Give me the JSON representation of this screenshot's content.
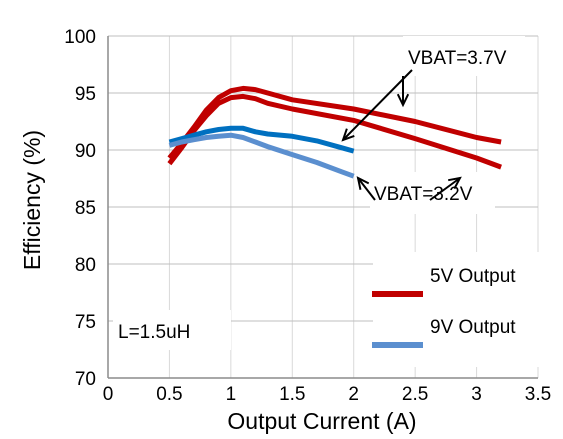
{
  "chart_data": {
    "type": "line",
    "title": "",
    "xlabel": "Output Current (A)",
    "ylabel": "Efficiency (%)",
    "xlim": [
      0,
      3.5
    ],
    "ylim": [
      70,
      100
    ],
    "xticks": [
      0,
      0.5,
      1,
      1.5,
      2,
      2.5,
      3,
      3.5
    ],
    "xtick_labels": [
      "0",
      "0.5",
      "1",
      "1.5",
      "2",
      "2.5",
      "3",
      "3.5"
    ],
    "yticks": [
      70,
      75,
      80,
      85,
      90,
      95,
      100
    ],
    "ytick_labels": [
      "70",
      "75",
      "80",
      "85",
      "90",
      "95",
      "100"
    ],
    "grid": true,
    "legend": {
      "placement": "lower-right",
      "entries": [
        {
          "label": "5V Output",
          "color": "#c00000"
        },
        {
          "label": "9V Output",
          "color": "#5b8fcf"
        }
      ]
    },
    "annotations": [
      {
        "text": "VBAT=3.7V"
      },
      {
        "text": "VBAT=3.2V"
      },
      {
        "text": "L=1.5uH"
      }
    ],
    "series": [
      {
        "color": "#c00000",
        "x": [
          0.5,
          0.6,
          0.7,
          0.8,
          0.9,
          1.0,
          1.1,
          1.2,
          1.3,
          1.5,
          2.0,
          2.5,
          3.0,
          3.2
        ],
        "y": [
          89.3,
          90.6,
          92.0,
          93.5,
          94.6,
          95.2,
          95.4,
          95.3,
          95.0,
          94.4,
          93.6,
          92.5,
          91.1,
          90.7
        ]
      },
      {
        "color": "#c00000",
        "x": [
          0.5,
          0.6,
          0.7,
          0.8,
          0.9,
          1.0,
          1.1,
          1.2,
          1.3,
          1.5,
          2.0,
          2.5,
          3.0,
          3.2
        ],
        "y": [
          88.8,
          90.2,
          91.7,
          93.0,
          94.1,
          94.6,
          94.7,
          94.5,
          94.1,
          93.6,
          92.6,
          91.0,
          89.3,
          88.5
        ]
      },
      {
        "color": "#0070c0",
        "x": [
          0.5,
          0.6,
          0.7,
          0.8,
          0.9,
          1.0,
          1.1,
          1.2,
          1.3,
          1.5,
          1.7,
          1.9,
          2.0
        ],
        "y": [
          90.7,
          91.0,
          91.3,
          91.6,
          91.8,
          91.9,
          91.9,
          91.6,
          91.4,
          91.2,
          90.8,
          90.2,
          89.9
        ]
      },
      {
        "color": "#5b8fcf",
        "x": [
          0.5,
          0.6,
          0.7,
          0.8,
          0.9,
          1.0,
          1.1,
          1.2,
          1.3,
          1.5,
          1.7,
          1.9,
          2.0
        ],
        "y": [
          90.4,
          90.7,
          90.9,
          91.1,
          91.2,
          91.3,
          91.1,
          90.7,
          90.3,
          89.6,
          88.9,
          88.1,
          87.7
        ]
      }
    ]
  }
}
